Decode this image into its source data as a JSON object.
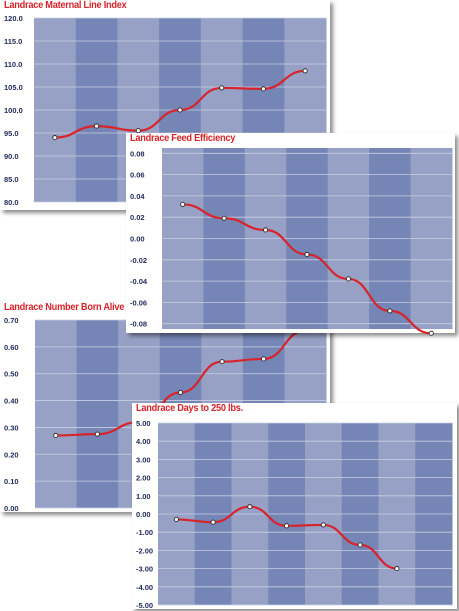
{
  "chart_data": [
    {
      "type": "line",
      "title": "Landrace Maternal Line Index",
      "yticks": [
        "80.0",
        "85.0",
        "90.0",
        "95.0",
        "100.0",
        "105.0",
        "110.0",
        "115.0",
        "120.0"
      ],
      "ylim": [
        80,
        120
      ],
      "x_count": 7,
      "values": [
        94.0,
        96.5,
        95.5,
        100.0,
        104.8,
        104.6,
        108.5
      ],
      "grid": true,
      "colors": {
        "line": "#d8232a",
        "band_light": "#97a1c6",
        "band_dark": "#7585b5"
      }
    },
    {
      "type": "line",
      "title": "Landrace Feed Efficiency",
      "yticks": [
        "0.08",
        "0.06",
        "0.04",
        "0.02",
        "0.00",
        "-0.02",
        "-0.04",
        "-0.06",
        "-0.08"
      ],
      "ylim": [
        -0.085,
        0.085
      ],
      "x_count": 7,
      "values": [
        0.032,
        0.019,
        0.008,
        -0.015,
        -0.038,
        -0.068,
        -0.089
      ],
      "grid": true,
      "colors": {
        "line": "#d8232a",
        "band_light": "#97a1c6",
        "band_dark": "#7585b5"
      }
    },
    {
      "type": "line",
      "title": "Landrace Number Born Alive",
      "yticks": [
        "0.00",
        "0.10",
        "0.20",
        "0.30",
        "0.40",
        "0.50",
        "0.60",
        "0.70"
      ],
      "ylim": [
        0,
        0.7
      ],
      "x_count": 7,
      "values": [
        0.27,
        0.275,
        0.32,
        0.43,
        0.545,
        0.555,
        0.66
      ],
      "grid": true,
      "colors": {
        "line": "#d8232a",
        "band_light": "#97a1c6",
        "band_dark": "#7585b5"
      }
    },
    {
      "type": "line",
      "title": "Landrace Days to 250 lbs.",
      "yticks": [
        "5.00",
        "4.00",
        "3.00",
        "2.00",
        "1.00",
        "0.00",
        "-1.00",
        "-2.00",
        "-3.00",
        "-4.00",
        "-5.00"
      ],
      "ylim": [
        -5,
        5
      ],
      "x_count": 8,
      "values": [
        -0.3,
        -0.45,
        0.4,
        -0.65,
        -0.6,
        -1.7,
        -3.0
      ],
      "x_positions": [
        0.5,
        1.5,
        2.5,
        3.5,
        4.5,
        5.5,
        6.5
      ],
      "grid": true,
      "colors": {
        "line": "#d8232a",
        "band_light": "#97a1c6",
        "band_dark": "#7585b5"
      }
    }
  ]
}
